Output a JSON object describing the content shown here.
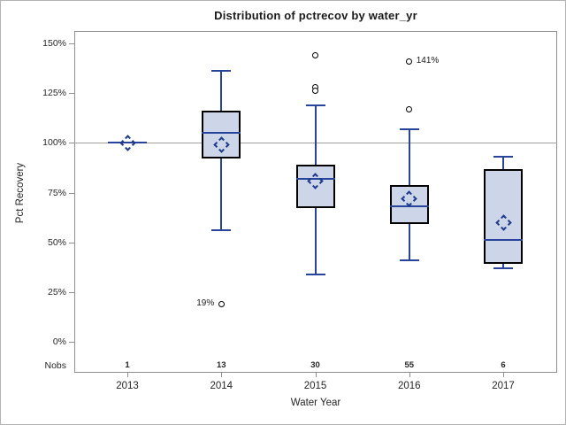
{
  "title": "Distribution of pctrecov by water_yr",
  "colors": {
    "box_fill": "#ccd6e8",
    "box_border": "#000000",
    "line": "#27439a",
    "diamond": "#1f3a8c",
    "ref_line": "#9f9f9f",
    "frame_border": "#8f8f8f",
    "text": "#262626"
  },
  "chart_data": {
    "type": "box",
    "title": "Distribution of pctrecov by water_yr",
    "xlabel": "Water Year",
    "ylabel": "Pct Recovery",
    "ylim": [
      0,
      150
    ],
    "ytick_step": 25,
    "ytick_values": [
      0,
      25,
      50,
      75,
      100,
      125,
      150
    ],
    "ytick_labels": [
      "0%",
      "25%",
      "50%",
      "75%",
      "100%",
      "125%",
      "150%"
    ],
    "ref_line_y": 100,
    "grid": "off",
    "legend": "none",
    "nobs_label": "Nobs",
    "categories": [
      "2013",
      "2014",
      "2015",
      "2016",
      "2017"
    ],
    "nobs": [
      1,
      13,
      30,
      55,
      6
    ],
    "series": [
      {
        "year": "2013",
        "n": 1,
        "single_value": 100,
        "mean": 100,
        "outliers": []
      },
      {
        "year": "2014",
        "n": 13,
        "whisker_low": 56,
        "q1": 92,
        "median": 105,
        "q3": 116,
        "whisker_high": 136,
        "mean": 99,
        "outliers": [
          {
            "value": 19,
            "label": "19%",
            "label_side": "left"
          }
        ]
      },
      {
        "year": "2015",
        "n": 30,
        "whisker_low": 34,
        "q1": 67,
        "median": 82,
        "q3": 89,
        "whisker_high": 119,
        "mean": 81,
        "outliers": [
          {
            "value": 144
          },
          {
            "value": 128
          },
          {
            "value": 126
          }
        ]
      },
      {
        "year": "2016",
        "n": 55,
        "whisker_low": 41,
        "q1": 59,
        "median": 68,
        "q3": 79,
        "whisker_high": 107,
        "mean": 72,
        "outliers": [
          {
            "value": 141,
            "label": "141%",
            "label_side": "right"
          },
          {
            "value": 117
          }
        ]
      },
      {
        "year": "2017",
        "n": 6,
        "whisker_low": 37,
        "q1": 39,
        "median": 51,
        "q3": 87,
        "whisker_high": 93,
        "mean": 60,
        "outliers": []
      }
    ]
  }
}
